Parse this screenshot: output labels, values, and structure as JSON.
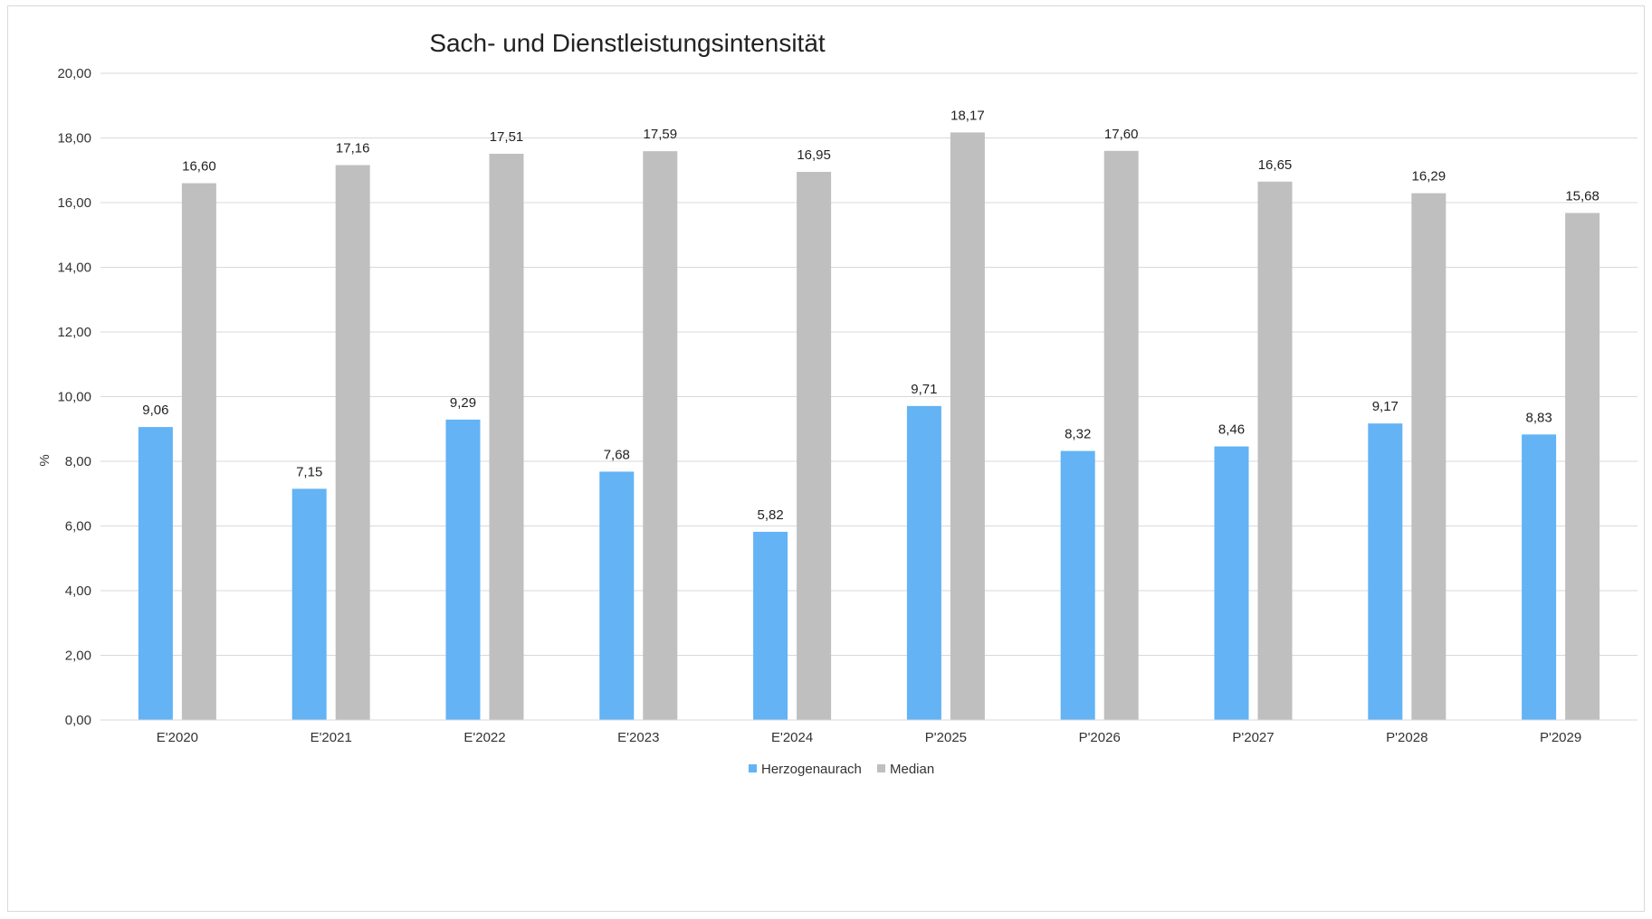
{
  "chart_data": {
    "type": "bar",
    "title": "Sach- und Dienstleistungsintensität",
    "xlabel": "",
    "ylabel": "%",
    "ylim": [
      0,
      20
    ],
    "yticks": [
      "0,00",
      "2,00",
      "4,00",
      "6,00",
      "8,00",
      "10,00",
      "12,00",
      "14,00",
      "16,00",
      "18,00",
      "20,00"
    ],
    "ytick_values": [
      0,
      2,
      4,
      6,
      8,
      10,
      12,
      14,
      16,
      18,
      20
    ],
    "grid": true,
    "legend_position": "bottom",
    "categories": [
      "E'2020",
      "E'2021",
      "E'2022",
      "E'2023",
      "E'2024",
      "P'2025",
      "P'2026",
      "P'2027",
      "P'2028",
      "P'2029"
    ],
    "series": [
      {
        "name": "Herzogenaurach",
        "color": "#63b3f5",
        "values": [
          9.06,
          7.15,
          9.29,
          7.68,
          5.82,
          9.71,
          8.32,
          8.46,
          9.17,
          8.83
        ],
        "labels": [
          "9,06",
          "7,15",
          "9,29",
          "7,68",
          "5,82",
          "9,71",
          "8,32",
          "8,46",
          "9,17",
          "8,83"
        ]
      },
      {
        "name": "Median",
        "color": "#bfbfbf",
        "values": [
          16.6,
          17.16,
          17.51,
          17.59,
          16.95,
          18.17,
          17.6,
          16.65,
          16.29,
          15.68
        ],
        "labels": [
          "16,60",
          "17,16",
          "17,51",
          "17,59",
          "16,95",
          "18,17",
          "17,60",
          "16,65",
          "16,29",
          "15,68"
        ]
      }
    ]
  }
}
